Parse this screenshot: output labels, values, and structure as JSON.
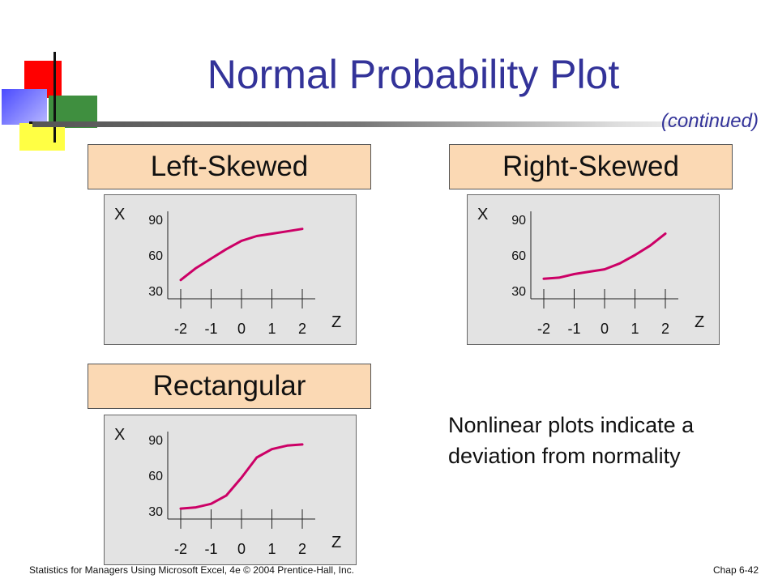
{
  "slide": {
    "title": "Normal Probability Plot",
    "subtitle": "(continued)",
    "note": "Nonlinear plots indicate a deviation from normality",
    "footer_left": "Statistics for Managers Using Microsoft Excel, 4e © 2004 Prentice-Hall, Inc.",
    "footer_right": "Chap 6-42"
  },
  "colors": {
    "title": "#333399",
    "header_fill": "#fbd9b4",
    "panel_fill": "#e3e3e3",
    "curve": "#cc0066"
  },
  "chart_data": [
    {
      "type": "line",
      "title": "Left-Skewed",
      "xlabel": "Z",
      "ylabel": "X",
      "x_ticks": [
        "-2",
        "-1",
        "0",
        "1",
        "2"
      ],
      "y_ticks": [
        "30",
        "60",
        "90"
      ],
      "xlim": [
        -2.6,
        2.6
      ],
      "ylim": [
        20,
        95
      ],
      "series": [
        {
          "x": [
            -2.0,
            -1.5,
            -1.0,
            -0.5,
            0.0,
            0.5,
            1.0,
            1.5,
            2.0
          ],
          "y": [
            39,
            49,
            57,
            65,
            72,
            76,
            78,
            80,
            82
          ]
        }
      ]
    },
    {
      "type": "line",
      "title": "Right-Skewed",
      "xlabel": "Z",
      "ylabel": "X",
      "x_ticks": [
        "-2",
        "-1",
        "0",
        "1",
        "2"
      ],
      "y_ticks": [
        "30",
        "60",
        "90"
      ],
      "xlim": [
        -2.6,
        2.6
      ],
      "ylim": [
        20,
        95
      ],
      "series": [
        {
          "x": [
            -2.0,
            -1.5,
            -1.0,
            -0.5,
            0.0,
            0.5,
            1.0,
            1.5,
            2.0
          ],
          "y": [
            40,
            41,
            44,
            46,
            48,
            53,
            60,
            68,
            78
          ]
        }
      ]
    },
    {
      "type": "line",
      "title": "Rectangular",
      "xlabel": "Z",
      "ylabel": "X",
      "x_ticks": [
        "-2",
        "-1",
        "0",
        "1",
        "2"
      ],
      "y_ticks": [
        "30",
        "60",
        "90"
      ],
      "xlim": [
        -2.6,
        2.6
      ],
      "ylim": [
        20,
        95
      ],
      "series": [
        {
          "x": [
            -2.0,
            -1.5,
            -1.0,
            -0.5,
            0.0,
            0.5,
            1.0,
            1.5,
            2.0
          ],
          "y": [
            32,
            33,
            36,
            43,
            58,
            75,
            82,
            85,
            86
          ]
        }
      ]
    }
  ]
}
